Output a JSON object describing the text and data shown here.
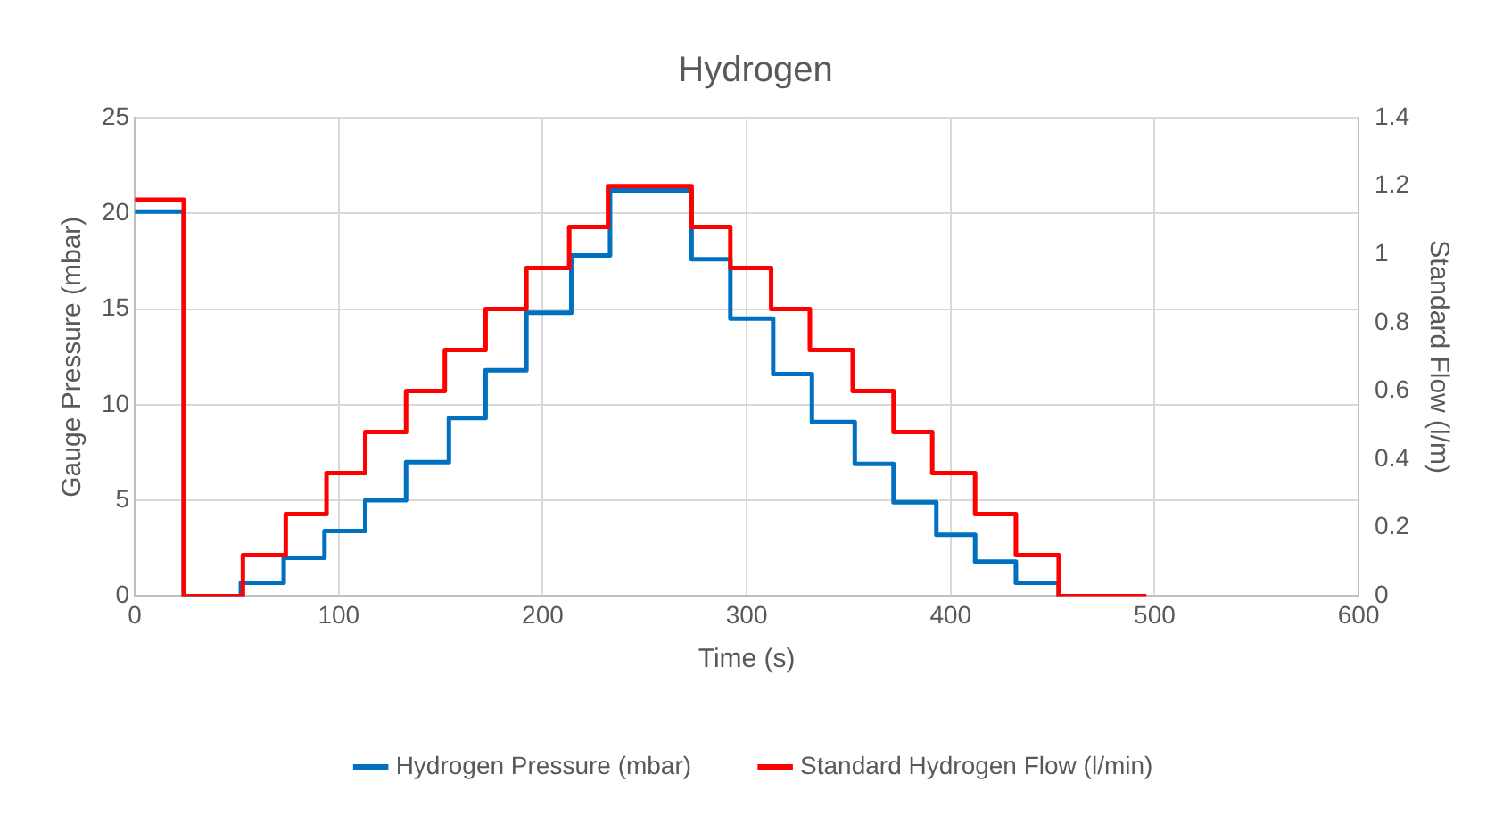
{
  "chart_data": {
    "type": "step",
    "title": "Hydrogen",
    "xlabel": "Time (s)",
    "ylabel": "Gauge Pressure (mbar)",
    "y2label": "Standard Flow (l/m)",
    "xlim": [
      0,
      600
    ],
    "xticks": [
      0,
      100,
      200,
      300,
      400,
      500,
      600
    ],
    "ylim": [
      0,
      25
    ],
    "yticks": [
      0,
      5,
      10,
      15,
      20,
      25
    ],
    "y2lim": [
      0,
      1.4
    ],
    "y2ticks": [
      0,
      0.2,
      0.4,
      0.6,
      0.8,
      1,
      1.2,
      1.4
    ],
    "grid": true,
    "legend": "bottom",
    "line_style": "solid",
    "marker": "none",
    "series": [
      {
        "name": "Hydrogen Pressure (mbar)",
        "color": "#0070c0",
        "x": [
          0,
          24,
          52,
          73,
          93,
          113,
          133,
          154,
          172,
          192,
          214,
          233,
          273,
          292,
          313,
          332,
          353,
          372,
          393,
          412,
          432,
          453,
          455
        ],
        "values": [
          20.1,
          0,
          0.7,
          2.0,
          3.4,
          5.0,
          7.0,
          9.3,
          11.8,
          14.8,
          17.8,
          21.2,
          17.6,
          14.5,
          11.6,
          9.1,
          6.9,
          4.9,
          3.2,
          1.8,
          0.7,
          0,
          0
        ]
      },
      {
        "name": "Standard Hydrogen Flow (l/min)",
        "color": "#ff0000",
        "axis": "y2",
        "x": [
          0,
          24,
          53,
          74,
          94,
          113,
          133,
          152,
          172,
          192,
          213,
          232,
          273,
          292,
          312,
          331,
          352,
          372,
          391,
          412,
          432,
          453,
          496
        ],
        "values": [
          1.16,
          0,
          0.12,
          0.24,
          0.36,
          0.48,
          0.6,
          0.72,
          0.84,
          0.96,
          1.08,
          1.2,
          1.08,
          0.96,
          0.84,
          0.72,
          0.6,
          0.48,
          0.36,
          0.24,
          0.12,
          0,
          0
        ]
      }
    ]
  }
}
